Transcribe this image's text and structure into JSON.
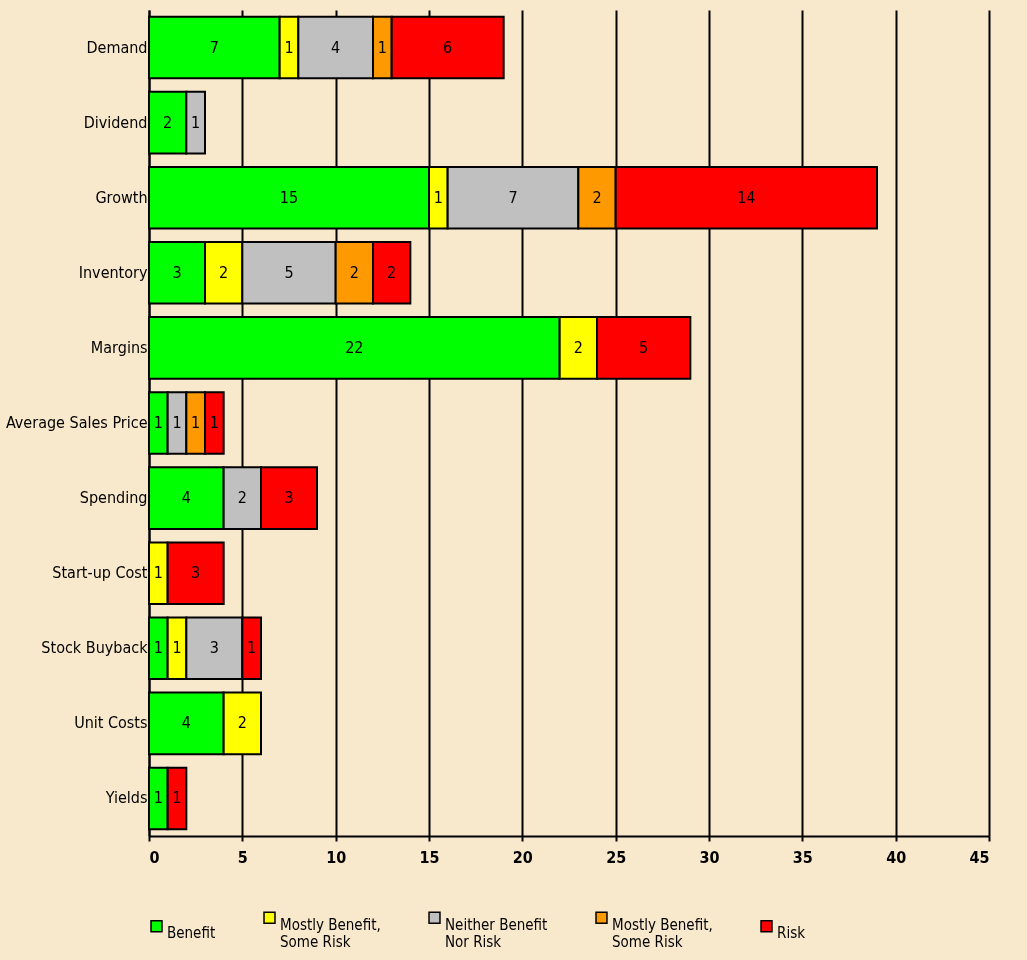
{
  "chart_data": {
    "type": "bar",
    "orientation": "horizontal",
    "stacked": true,
    "data_labels": true,
    "grid": "x",
    "legend": "bottom",
    "categories": [
      "Demand",
      "Dividend",
      "Growth",
      "Inventory",
      "Margins",
      "Average Sales Price",
      "Spending",
      "Start-up Cost",
      "Stock Buyback",
      "Unit Costs",
      "Yields"
    ],
    "xlim": [
      0,
      45
    ],
    "xticks": [
      0,
      5,
      10,
      15,
      20,
      25,
      30,
      35,
      40,
      45
    ],
    "series": [
      {
        "name": "Benefit",
        "color": "#00ff00",
        "values": [
          7,
          2,
          15,
          3,
          22,
          1,
          4,
          null,
          1,
          4,
          1
        ]
      },
      {
        "name": "Mostly Benefit, Some Risk",
        "color": "#ffff00",
        "values": [
          1,
          null,
          1,
          2,
          2,
          null,
          null,
          1,
          1,
          2,
          null
        ]
      },
      {
        "name": "Neither Benefit Nor Risk",
        "color": "#c0c0c0",
        "values": [
          4,
          1,
          7,
          5,
          null,
          1,
          2,
          null,
          3,
          null,
          null
        ]
      },
      {
        "name": "Mostly Benefit, Some Risk",
        "color": "#ff9900",
        "values": [
          1,
          null,
          2,
          2,
          null,
          1,
          null,
          null,
          null,
          null,
          null
        ]
      },
      {
        "name": "Risk",
        "color": "#ff0000",
        "values": [
          6,
          null,
          14,
          2,
          5,
          1,
          3,
          3,
          1,
          null,
          1
        ]
      }
    ]
  }
}
